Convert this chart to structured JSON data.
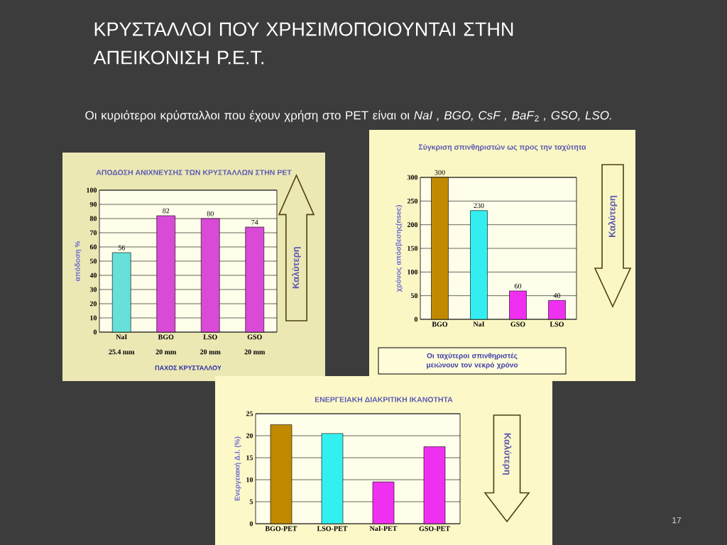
{
  "chart_data": [
    {
      "type": "other",
      "title": "ΚΡΥΣΤΑΛΛΟΙ ΠΟΥ ΧΡΗΣΙΜΟΠΟΙΟΥΝΤΑΙ ΣΤΗΝ ΑΠΕΙΚΟΝΙΣΗ P.E.T.",
      "annotations": [
        "Οι κυριότεροι κρύσταλλοι που έχουν χρήση στο PET είναι οι *NaI , BGO, CsF , BaF*$_{2}$ *, GSO, LSO.*",
        "17"
      ]
    },
    {
      "type": "bar",
      "title": "ΑΠΟΔΟΣΗ ΑΝΙΧΝΕΥΣΗΣ ΤΩΝ ΚΡΥΣΤΑΛΛΩΝ ΣΤΗΝ PET",
      "xlabel": "ΠΑΧΟΣ ΚΡΥΣΤΑΛΛΟΥ",
      "ylabel": "απόδοση %",
      "categories": [
        "NaI",
        "BGO",
        "LSO",
        "GSO"
      ],
      "values": [
        56,
        82,
        80,
        74
      ],
      "colors": [
        "#66e0d8",
        "#d94ad6",
        "#d94ad6",
        "#d94ad6"
      ],
      "ylim": [
        0,
        100
      ],
      "yticks": [
        0,
        10,
        20,
        30,
        40,
        50,
        60,
        70,
        80,
        90,
        100
      ],
      "grid": "y",
      "data_labels": true,
      "annotations": [
        "25.4 mm",
        "20 mm",
        "20 mm",
        "20 mm",
        "Καλύτερη"
      ]
    },
    {
      "type": "bar",
      "title": "Σύγκριση σπινθηριστών ως προς την ταχύτητα",
      "ylabel": "χρόνος απόσβεσης(nsec)",
      "categories": [
        "BGO",
        "NaI",
        "GSO",
        "LSO"
      ],
      "values": [
        300,
        230,
        60,
        40
      ],
      "colors": [
        "#c08a00",
        "#33eef0",
        "#f030f0",
        "#f030f0"
      ],
      "ylim": [
        0,
        300
      ],
      "yticks": [
        0,
        50,
        100,
        150,
        200,
        250,
        300
      ],
      "grid": "y",
      "data_labels": true,
      "annotations": [
        "Καλύτερη",
        "Οι ταχύτεροι σπινθηριστές μειώνουν τον νεκρό χρόνο"
      ]
    },
    {
      "type": "bar",
      "title": "ΕΝΕΡΓΕΙΑΚΗ ΔΙΑΚΡΙΤΙΚΗ ΙΚΑΝΟΤΗΤΑ",
      "ylabel": "Ενεργειακή Δ.Ι. (%)",
      "categories": [
        "BGO-PET",
        "LSO-PET",
        "NaI-PET",
        "GSO-PET"
      ],
      "values": [
        22.5,
        20.5,
        9.5,
        17.5
      ],
      "colors": [
        "#c08a00",
        "#33f0f0",
        "#f030f0",
        "#f030f0"
      ],
      "ylim": [
        0,
        25
      ],
      "yticks": [
        0,
        5,
        10,
        15,
        20,
        25
      ],
      "grid": "y",
      "annotations": [
        "Καλύτερη"
      ]
    }
  ]
}
